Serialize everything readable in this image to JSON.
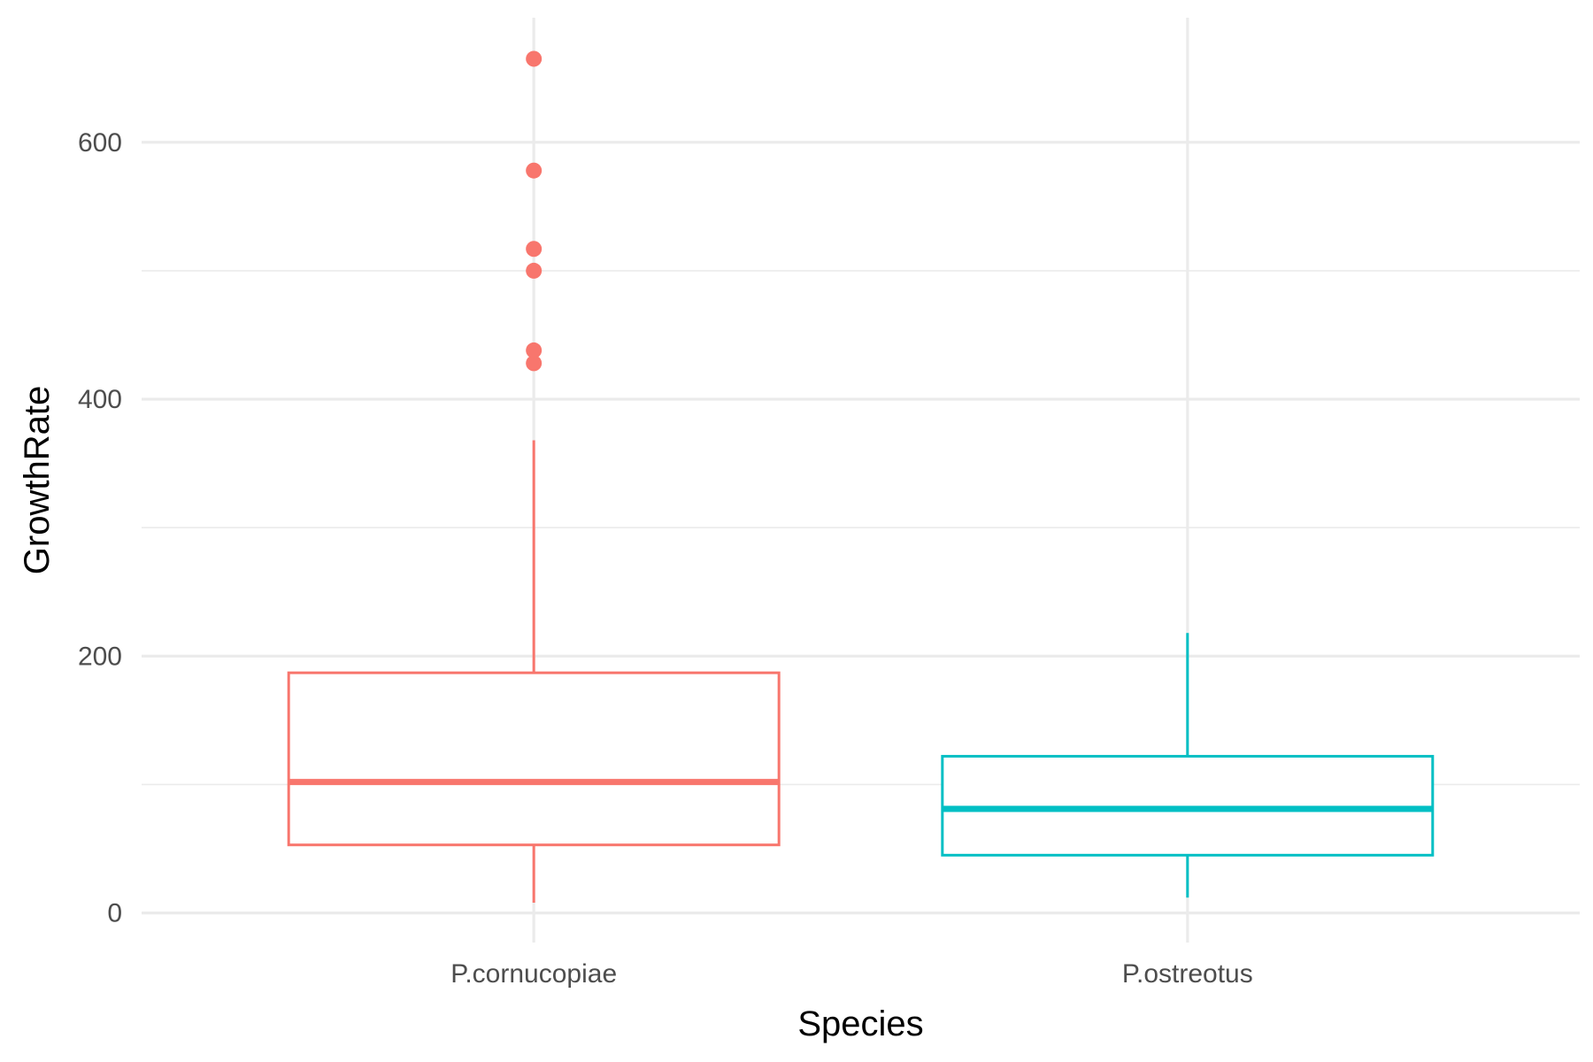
{
  "chart_data": {
    "type": "boxplot",
    "xlabel": "Species",
    "ylabel": "GrowthRate",
    "ylim": [
      -23,
      697
    ],
    "y_ticks": [
      0,
      200,
      400,
      600
    ],
    "y_minor_ticks": [
      100,
      300,
      500
    ],
    "grid": true,
    "legend": "none",
    "categories": [
      "P.cornucopiae",
      "P.ostreotus"
    ],
    "series": [
      {
        "category": "P.cornucopiae",
        "color": "#F8766D",
        "whisker_low": 8,
        "q1": 53,
        "median": 102,
        "q3": 187,
        "whisker_high": 368,
        "outliers": [
          428,
          438,
          500,
          517,
          578,
          665
        ]
      },
      {
        "category": "P.ostreotus",
        "color": "#00BFC4",
        "whisker_low": 12,
        "q1": 45,
        "median": 81,
        "q3": 122,
        "whisker_high": 218,
        "outliers": []
      }
    ]
  }
}
